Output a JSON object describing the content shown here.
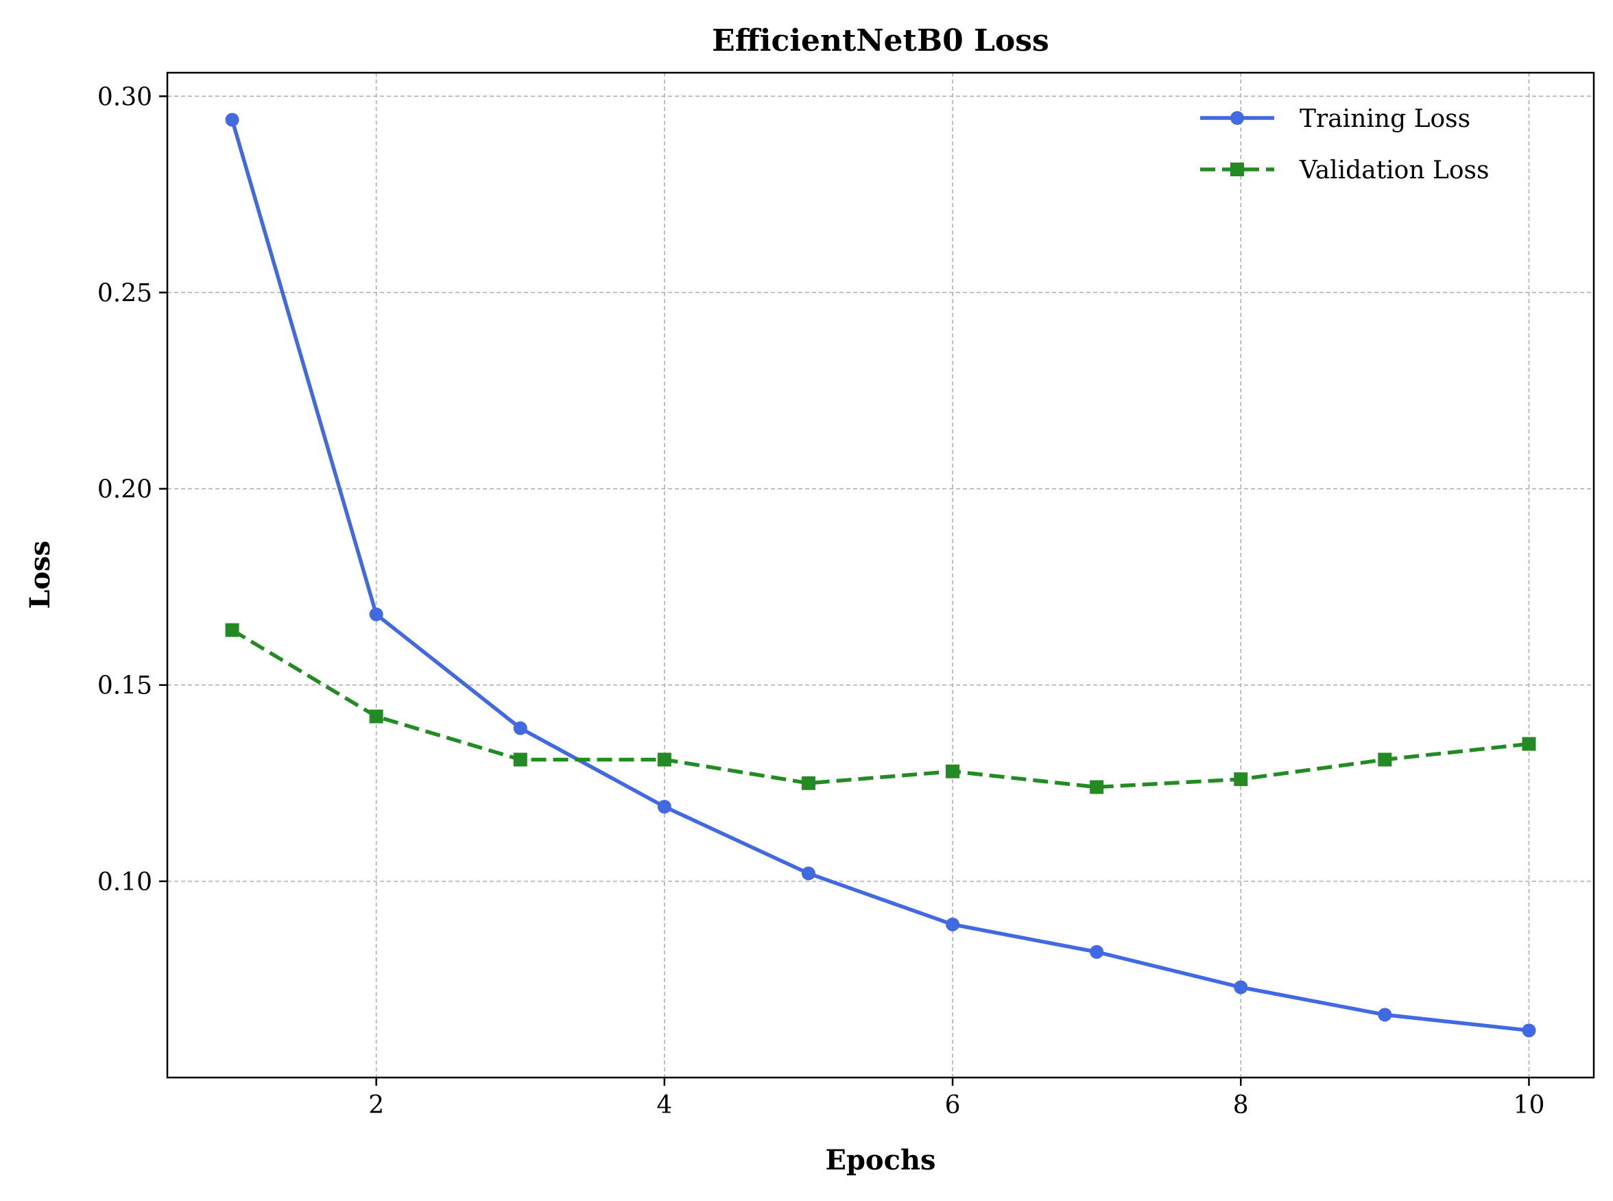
{
  "chart_data": {
    "type": "line",
    "title": "EfficientNetB0 Loss",
    "xlabel": "Epochs",
    "ylabel": "Loss",
    "x": [
      1,
      2,
      3,
      4,
      5,
      6,
      7,
      8,
      9,
      10
    ],
    "xlim": [
      0.55,
      10.45
    ],
    "ylim": [
      0.05,
      0.306
    ],
    "xticks": [
      2,
      4,
      6,
      8,
      10
    ],
    "xtick_labels": [
      "2",
      "4",
      "6",
      "8",
      "10"
    ],
    "yticks": [
      0.1,
      0.15,
      0.2,
      0.25,
      0.3
    ],
    "ytick_labels": [
      "0.10",
      "0.15",
      "0.20",
      "0.25",
      "0.30"
    ],
    "grid": true,
    "legend_position": "top-right",
    "series": [
      {
        "name": "Training Loss",
        "values": [
          0.294,
          0.168,
          0.139,
          0.119,
          0.102,
          0.089,
          0.082,
          0.073,
          0.066,
          0.062
        ],
        "color": "#4169e1",
        "line_style": "solid",
        "marker": "circle"
      },
      {
        "name": "Validation Loss",
        "values": [
          0.164,
          0.142,
          0.131,
          0.131,
          0.125,
          0.128,
          0.124,
          0.126,
          0.131,
          0.135
        ],
        "color": "#228b22",
        "line_style": "dashed",
        "marker": "square"
      }
    ]
  }
}
